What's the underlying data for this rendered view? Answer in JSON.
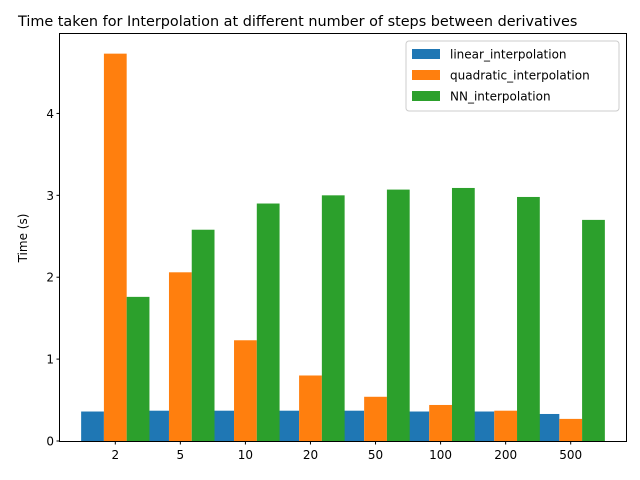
{
  "chart_data": {
    "type": "bar",
    "title": "Time taken for Interpolation at different number of steps between derivatives",
    "xlabel": "",
    "ylabel": "Time (s)",
    "ylim": [
      0,
      4.97
    ],
    "yticks": [
      0,
      1,
      2,
      3,
      4
    ],
    "grid": false,
    "legend_position": "top-right",
    "categories": [
      "2",
      "5",
      "10",
      "20",
      "50",
      "100",
      "200",
      "500"
    ],
    "series": [
      {
        "name": "linear_interpolation",
        "color": "#1f77b4",
        "values": [
          0.36,
          0.37,
          0.37,
          0.37,
          0.37,
          0.36,
          0.36,
          0.33
        ]
      },
      {
        "name": "quadratic_interpolation",
        "color": "#ff7f0e",
        "values": [
          4.73,
          2.06,
          1.23,
          0.8,
          0.54,
          0.44,
          0.37,
          0.27
        ]
      },
      {
        "name": "NN_interpolation",
        "color": "#2ca02c",
        "values": [
          1.76,
          2.58,
          2.9,
          3.0,
          3.07,
          3.09,
          2.98,
          2.7
        ]
      }
    ]
  }
}
